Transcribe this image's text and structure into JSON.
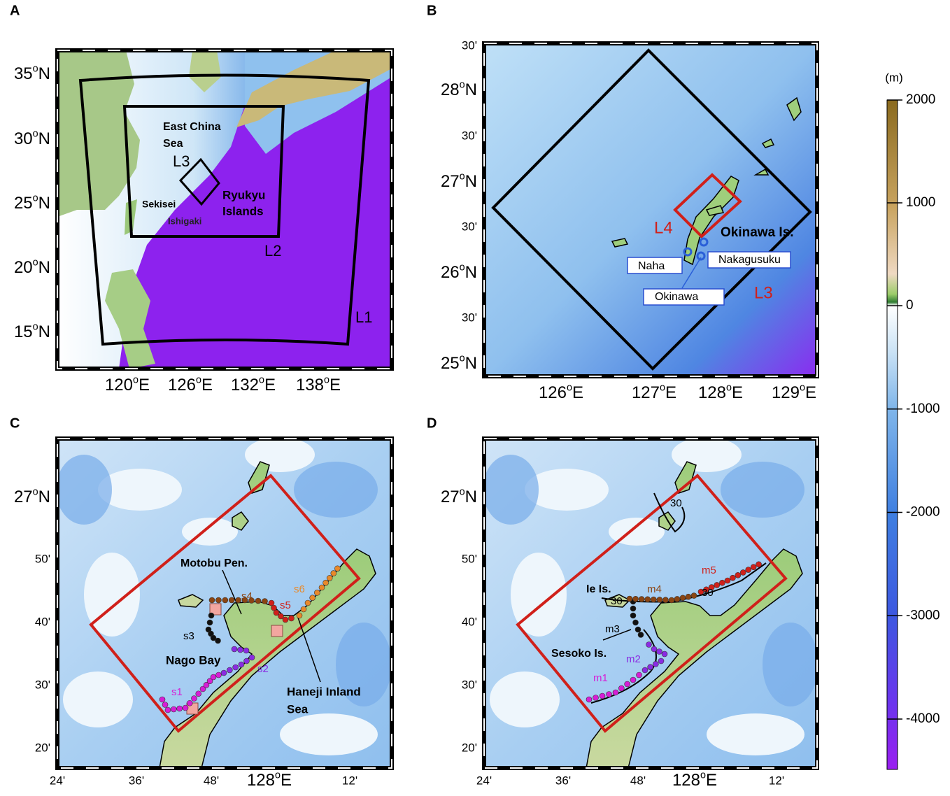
{
  "panels": [
    {
      "letter": "A",
      "lat_labels": [
        "35oN",
        "30oN",
        "25oN",
        "20oN",
        "15oN"
      ],
      "lon_labels": [
        "120oE",
        "126oE",
        "132oE",
        "138oE"
      ],
      "annotations": [
        "East China",
        "Sea",
        "L3",
        "Sekisei",
        "Ishigaki",
        "Ryukyu",
        "Islands",
        "L2",
        "L1"
      ]
    },
    {
      "letter": "B",
      "lat_labels": [
        "30'",
        "28oN",
        "30'",
        "27oN",
        "30'",
        "26oN",
        "30'",
        "25oN"
      ],
      "lon_labels": [
        "126oE",
        "127oE",
        "128oE",
        "129oE"
      ],
      "annotations": [
        "L4",
        "Okinawa Is.",
        "Naha",
        "Nakagusuku",
        "Okinawa",
        "L3"
      ]
    },
    {
      "letter": "C",
      "lat_labels": [
        "27oN",
        "50'",
        "40'",
        "30'",
        "20'"
      ],
      "lon_labels": [
        "24'",
        "36'",
        "48'",
        "128oE",
        "12'"
      ],
      "annotations": [
        "Motobu Pen.",
        "s1",
        "s2",
        "s3",
        "s4",
        "s5",
        "s6",
        "Nago Bay",
        "Haneji Inland",
        "Sea"
      ]
    },
    {
      "letter": "D",
      "lat_labels": [
        "27oN",
        "50'",
        "40'",
        "30'",
        "20'"
      ],
      "lon_labels": [
        "24'",
        "36'",
        "48'",
        "128oE",
        "12'"
      ],
      "annotations": [
        "Ie Is.",
        "m1",
        "m2",
        "m3",
        "m4",
        "m5",
        "Sesoko Is.",
        "30",
        "30",
        "30"
      ]
    }
  ],
  "colorbar": {
    "unit": "(m)",
    "ticks": [
      2000,
      1000,
      0,
      -1000,
      -2000,
      -3000,
      -4000
    ]
  }
}
